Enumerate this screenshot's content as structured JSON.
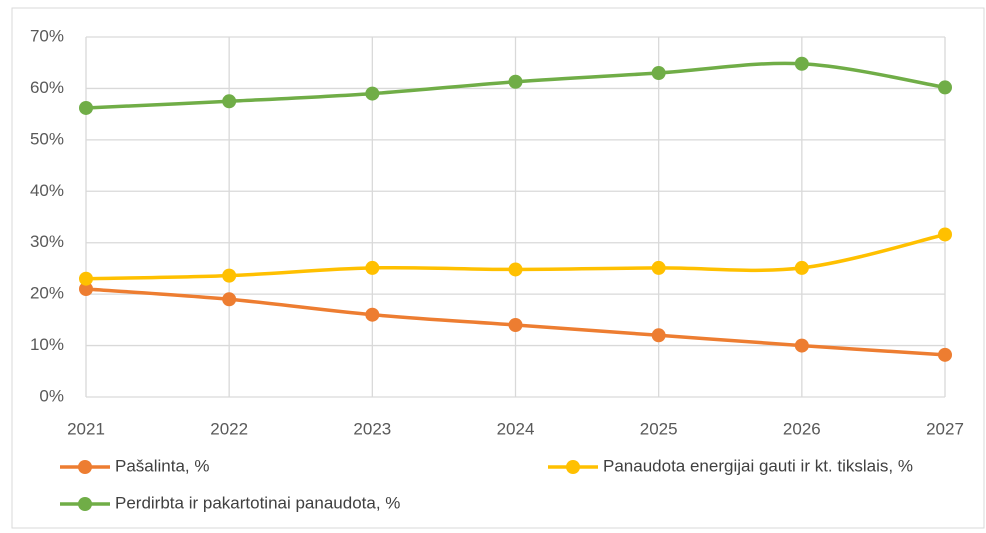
{
  "chart_data": {
    "type": "line",
    "categories": [
      "2021",
      "2022",
      "2023",
      "2024",
      "2025",
      "2026",
      "2027"
    ],
    "series": [
      {
        "name": "Pašalinta, %",
        "color": "#ed7d31",
        "values": [
          21,
          19,
          16,
          14,
          12,
          10,
          8.2
        ]
      },
      {
        "name": "Panaudota energijai gauti ir kt. tikslais, %",
        "color": "#ffc000",
        "values": [
          23,
          23.6,
          25.1,
          24.8,
          25.1,
          25.1,
          31.6
        ]
      },
      {
        "name": "Perdirbta ir pakartotinai panaudota, %",
        "color": "#70ad47",
        "values": [
          56.2,
          57.5,
          59,
          61.3,
          63,
          64.8,
          60.2
        ]
      }
    ],
    "ylim": [
      0,
      70
    ],
    "yticks": [
      {
        "value": 0,
        "label": "0%"
      },
      {
        "value": 10,
        "label": "10%"
      },
      {
        "value": 20,
        "label": "20%"
      },
      {
        "value": 30,
        "label": "30%"
      },
      {
        "value": 40,
        "label": "40%"
      },
      {
        "value": 50,
        "label": "50%"
      },
      {
        "value": 60,
        "label": "60%"
      },
      {
        "value": 70,
        "label": "70%"
      }
    ],
    "grid": true,
    "smooth": true,
    "legend": "bottom"
  }
}
